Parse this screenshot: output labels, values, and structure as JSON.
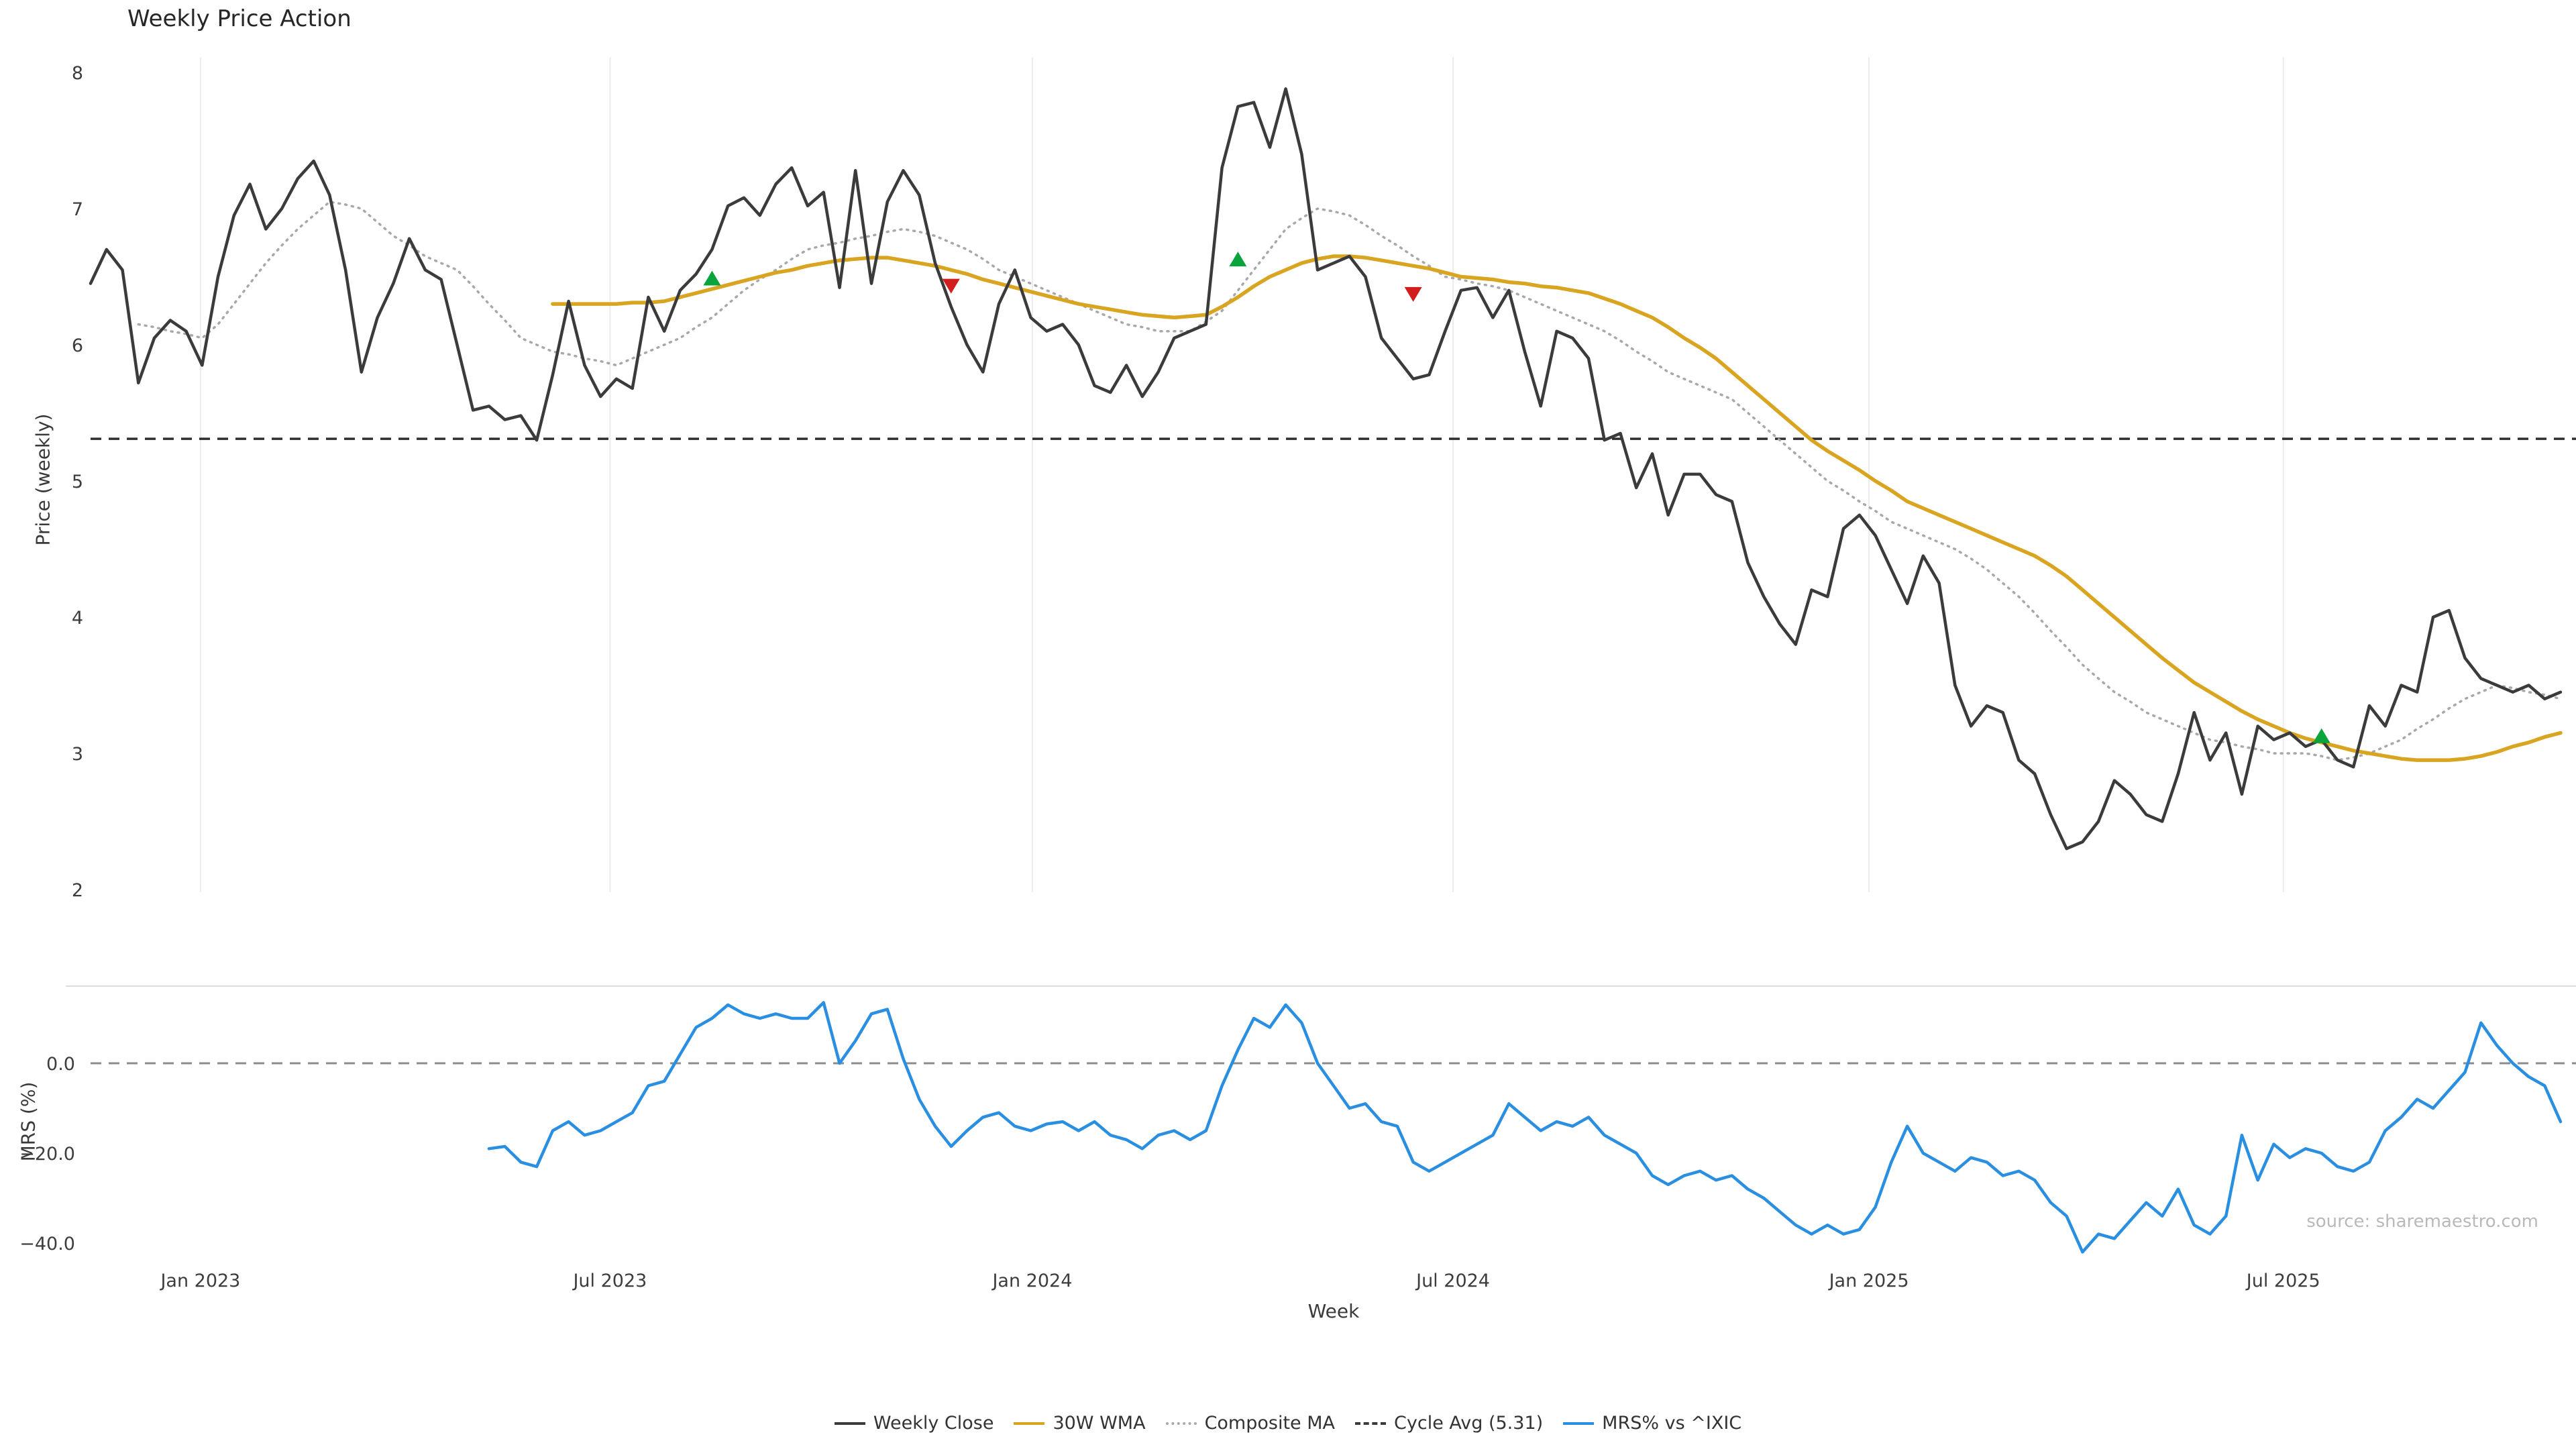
{
  "title": "Weekly Price Action",
  "source": "source: sharemaestro.com",
  "axes": {
    "price_label": "Price (weekly)",
    "mrs_label": "MRS (%)",
    "x_label": "Week",
    "x_ticks": [
      "Jan 2023",
      "Jul 2023",
      "Jan 2024",
      "Jul 2024",
      "Jan 2025",
      "Jul 2025"
    ],
    "tick_weeks": [
      6.9,
      32.6,
      59.1,
      85.5,
      111.6,
      137.6
    ],
    "price_ticks": [
      8,
      7,
      6,
      5,
      4,
      3,
      2
    ],
    "mrs_ticks": [
      {
        "v": 0,
        "label": "0.0"
      },
      {
        "v": -20,
        "label": "−20.0"
      },
      {
        "v": -40,
        "label": "−40.0"
      }
    ]
  },
  "legend": [
    {
      "label": "Weekly Close",
      "color": "#3b3b3b",
      "style": "solid"
    },
    {
      "label": "30W WMA",
      "color": "#d9a521",
      "style": "solid"
    },
    {
      "label": "Composite MA",
      "color": "#a8a8a8",
      "style": "dotted"
    },
    {
      "label": "Cycle Avg (5.31)",
      "color": "#3a3a3a",
      "style": "dashed"
    },
    {
      "label": "MRS% vs ^IXIC",
      "color": "#2a8fe0",
      "style": "solid"
    }
  ],
  "chart_data": {
    "type": "line",
    "x_unit": "week",
    "price_panel": {
      "ylabel": "Price (weekly)",
      "ylim": [
        1.95,
        8.1
      ],
      "yticks": [
        2,
        3,
        4,
        5,
        6,
        7,
        8
      ],
      "cycle_avg": {
        "label": "Cycle Avg (5.31)",
        "value": 5.31,
        "style": "dashed",
        "color": "#2f2f2f"
      },
      "buy_color": "#0aa43c",
      "sell_color": "#d11d1d",
      "buy_markers": [
        {
          "week": 39,
          "price": 6.48
        },
        {
          "week": 72,
          "price": 6.62
        },
        {
          "week": 140,
          "price": 3.12
        }
      ],
      "sell_markers": [
        {
          "week": 54,
          "price": 6.44
        },
        {
          "week": 83,
          "price": 6.38
        }
      ],
      "series": [
        {
          "name": "Weekly Close",
          "color": "#3b3b3b",
          "style": "solid",
          "start_week": 0,
          "values": [
            6.45,
            6.7,
            6.55,
            5.72,
            6.05,
            6.18,
            6.1,
            5.85,
            6.5,
            6.95,
            7.18,
            6.85,
            7.0,
            7.22,
            7.35,
            7.1,
            6.55,
            5.8,
            6.2,
            6.45,
            6.78,
            6.55,
            6.48,
            6.0,
            5.52,
            5.55,
            5.45,
            5.48,
            5.3,
            5.78,
            6.32,
            5.85,
            5.62,
            5.75,
            5.68,
            6.35,
            6.1,
            6.4,
            6.52,
            6.7,
            7.02,
            7.08,
            6.95,
            7.18,
            7.3,
            7.02,
            7.12,
            6.42,
            7.28,
            6.45,
            7.05,
            7.28,
            7.1,
            6.6,
            6.28,
            6.0,
            5.8,
            6.3,
            6.55,
            6.2,
            6.1,
            6.15,
            6.0,
            5.7,
            5.65,
            5.85,
            5.62,
            5.8,
            6.05,
            6.1,
            6.15,
            7.3,
            7.75,
            7.78,
            7.45,
            7.88,
            7.4,
            6.55,
            6.6,
            6.65,
            6.5,
            6.05,
            5.9,
            5.75,
            5.78,
            6.1,
            6.4,
            6.42,
            6.2,
            6.4,
            5.95,
            5.55,
            6.1,
            6.05,
            5.9,
            5.3,
            5.35,
            4.95,
            5.2,
            4.75,
            5.05,
            5.05,
            4.9,
            4.85,
            4.4,
            4.15,
            3.95,
            3.8,
            4.2,
            4.15,
            4.65,
            4.75,
            4.6,
            4.35,
            4.1,
            4.45,
            4.25,
            3.5,
            3.2,
            3.35,
            3.3,
            2.95,
            2.85,
            2.55,
            2.3,
            2.35,
            2.5,
            2.8,
            2.7,
            2.55,
            2.5,
            2.85,
            3.3,
            2.95,
            3.15,
            2.7,
            3.2,
            3.1,
            3.15,
            3.05,
            3.1,
            2.95,
            2.9,
            3.35,
            3.2,
            3.5,
            3.45,
            4.0,
            4.05,
            3.7,
            3.55,
            3.5,
            3.45,
            3.5,
            3.4,
            3.45
          ]
        },
        {
          "name": "30W WMA",
          "color": "#d9a521",
          "style": "solid",
          "start_week": 29,
          "values": [
            6.3,
            6.3,
            6.3,
            6.3,
            6.3,
            6.31,
            6.31,
            6.32,
            6.35,
            6.38,
            6.41,
            6.44,
            6.47,
            6.5,
            6.53,
            6.55,
            6.58,
            6.6,
            6.62,
            6.63,
            6.64,
            6.64,
            6.62,
            6.6,
            6.58,
            6.55,
            6.52,
            6.48,
            6.45,
            6.42,
            6.39,
            6.36,
            6.33,
            6.3,
            6.28,
            6.26,
            6.24,
            6.22,
            6.21,
            6.2,
            6.21,
            6.22,
            6.28,
            6.35,
            6.43,
            6.5,
            6.55,
            6.6,
            6.63,
            6.65,
            6.65,
            6.64,
            6.62,
            6.6,
            6.58,
            6.56,
            6.53,
            6.5,
            6.49,
            6.48,
            6.46,
            6.45,
            6.43,
            6.42,
            6.4,
            6.38,
            6.34,
            6.3,
            6.25,
            6.2,
            6.13,
            6.05,
            5.98,
            5.9,
            5.8,
            5.7,
            5.6,
            5.5,
            5.4,
            5.3,
            5.22,
            5.15,
            5.08,
            5.0,
            4.93,
            4.85,
            4.8,
            4.75,
            4.7,
            4.65,
            4.6,
            4.55,
            4.5,
            4.45,
            4.38,
            4.3,
            4.2,
            4.1,
            4.0,
            3.9,
            3.8,
            3.7,
            3.61,
            3.52,
            3.45,
            3.38,
            3.31,
            3.25,
            3.2,
            3.15,
            3.11,
            3.08,
            3.05,
            3.02,
            3.0,
            2.98,
            2.96,
            2.95,
            2.95,
            2.95,
            2.96,
            2.98,
            3.01,
            3.05,
            3.08,
            3.12,
            3.15
          ]
        },
        {
          "name": "Composite MA",
          "color": "#a8a8a8",
          "style": "dotted",
          "start_week": 3,
          "values": [
            6.15,
            6.13,
            6.1,
            6.08,
            6.05,
            6.15,
            6.3,
            6.45,
            6.6,
            6.73,
            6.85,
            6.95,
            7.05,
            7.03,
            7.0,
            6.9,
            6.8,
            6.73,
            6.65,
            6.6,
            6.55,
            6.43,
            6.3,
            6.18,
            6.05,
            6.0,
            5.95,
            5.93,
            5.9,
            5.88,
            5.85,
            5.9,
            5.95,
            6.0,
            6.05,
            6.13,
            6.2,
            6.3,
            6.4,
            6.48,
            6.55,
            6.63,
            6.7,
            6.73,
            6.75,
            6.78,
            6.8,
            6.83,
            6.85,
            6.83,
            6.8,
            6.75,
            6.7,
            6.63,
            6.55,
            6.5,
            6.45,
            6.4,
            6.35,
            6.3,
            6.25,
            6.2,
            6.15,
            6.13,
            6.1,
            6.1,
            6.1,
            6.17,
            6.25,
            6.4,
            6.55,
            6.7,
            6.85,
            6.93,
            7.0,
            6.98,
            6.95,
            6.88,
            6.8,
            6.73,
            6.65,
            6.58,
            6.5,
            6.48,
            6.45,
            6.43,
            6.4,
            6.35,
            6.3,
            6.25,
            6.2,
            6.15,
            6.1,
            6.03,
            5.95,
            5.88,
            5.8,
            5.75,
            5.7,
            5.65,
            5.6,
            5.5,
            5.4,
            5.3,
            5.2,
            5.1,
            5.0,
            4.93,
            4.85,
            4.78,
            4.7,
            4.65,
            4.6,
            4.55,
            4.5,
            4.43,
            4.35,
            4.25,
            4.15,
            4.03,
            3.9,
            3.78,
            3.65,
            3.55,
            3.45,
            3.38,
            3.3,
            3.25,
            3.2,
            3.15,
            3.1,
            3.08,
            3.05,
            3.03,
            3.0,
            3.0,
            3.0,
            2.98,
            2.95,
            2.97,
            3.0,
            3.05,
            3.1,
            3.18,
            3.25,
            3.33,
            3.4,
            3.45,
            3.5,
            3.48,
            3.45,
            3.43,
            3.4
          ]
        }
      ]
    },
    "mrs_panel": {
      "ylabel": "MRS (%)",
      "ylim": [
        -44,
        17
      ],
      "yticks": [
        0,
        -20,
        -40
      ],
      "ytick_labels": [
        "0.0",
        "−20.0",
        "−40.0"
      ],
      "zero_line": {
        "value": 0,
        "style": "dashed",
        "color": "#8c8c8c"
      },
      "series": [
        {
          "name": "MRS% vs ^IXIC",
          "color": "#2a8fe0",
          "style": "solid",
          "start_week": 25,
          "values": [
            -19,
            -18.5,
            -22,
            -23,
            -15,
            -13,
            -16,
            -15,
            -13,
            -11,
            -5,
            -4,
            2,
            8,
            10,
            13,
            11,
            10,
            11,
            10,
            10,
            13.5,
            0,
            5,
            11,
            12,
            1,
            -8,
            -14,
            -18.5,
            -15,
            -12,
            -11,
            -14,
            -15,
            -13.5,
            -13,
            -15,
            -13,
            -16,
            -17,
            -19,
            -16,
            -15,
            -17,
            -15,
            -5,
            3,
            10,
            8,
            13,
            9,
            0,
            -5,
            -10,
            -9,
            -13,
            -14,
            -22,
            -24,
            -22,
            -20,
            -18,
            -16,
            -9,
            -12,
            -15,
            -13,
            -14,
            -12,
            -16,
            -18,
            -20,
            -25,
            -27,
            -25,
            -24,
            -26,
            -25,
            -28,
            -30,
            -33,
            -36,
            -38,
            -36,
            -38,
            -37,
            -32,
            -22,
            -14,
            -20,
            -22,
            -24,
            -21,
            -22,
            -25,
            -24,
            -26,
            -31,
            -34,
            -42,
            -38,
            -39,
            -35,
            -31,
            -34,
            -28,
            -36,
            -38,
            -34,
            -16,
            -26,
            -18,
            -21,
            -19,
            -20,
            -23,
            -24,
            -22,
            -15,
            -12,
            -8,
            -10,
            -6,
            -2,
            9,
            4,
            0,
            -3,
            -5,
            -13
          ]
        }
      ]
    }
  }
}
